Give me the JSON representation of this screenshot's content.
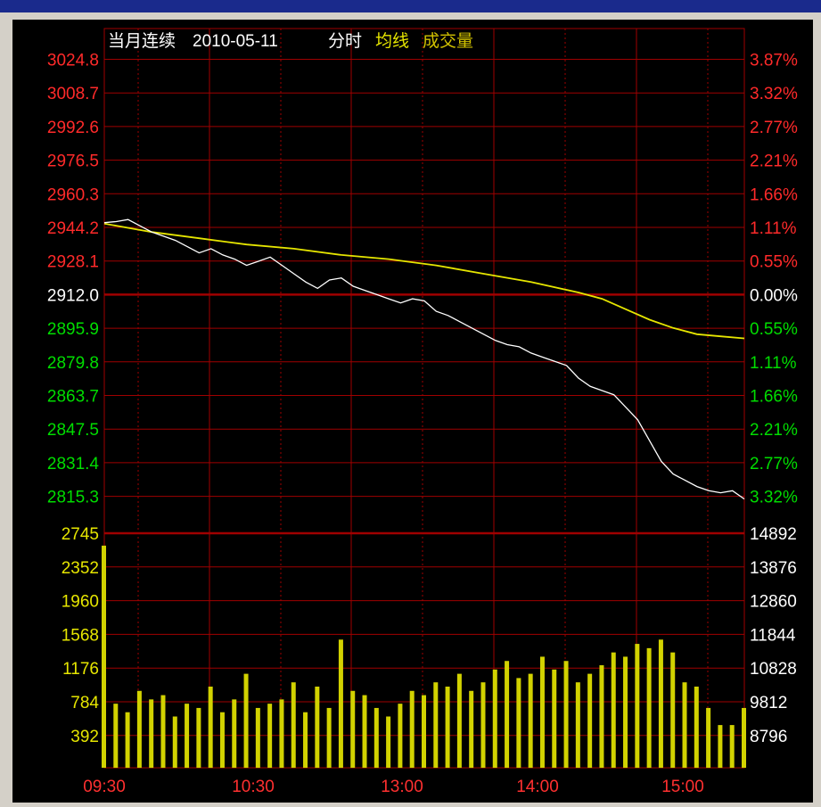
{
  "header": {
    "prefix": "当月连续",
    "date": "2010-05-11",
    "mode": "分时",
    "avg_label": "均线",
    "vol_label": "成交量"
  },
  "colors": {
    "background": "#000000",
    "grid": "#a00000",
    "price_line": "#ffffff",
    "avg_line": "#e6e600",
    "volume_bar": "#d2d200",
    "up_text": "#ff2a2a",
    "down_text": "#00dd00",
    "neutral_text": "#ffffff",
    "volume_text": "#e6e600",
    "time_text": "#ff3030"
  },
  "chart_data": {
    "type": "line",
    "title": "当月连续 2010-05-11 分时",
    "legend": [
      "均线",
      "成交量"
    ],
    "prev_close": 2912.0,
    "price_axis": {
      "ticks": [
        "3024.8",
        "3008.7",
        "2992.6",
        "2976.5",
        "2960.3",
        "2944.2",
        "2928.1",
        "2912.0",
        "2895.9",
        "2879.8",
        "2863.7",
        "2847.5",
        "2831.4",
        "2815.3"
      ],
      "pct_ticks": [
        "3.87%",
        "3.32%",
        "2.77%",
        "2.21%",
        "1.66%",
        "1.11%",
        "0.55%",
        "0.00%",
        "0.55%",
        "1.11%",
        "1.66%",
        "2.21%",
        "2.77%",
        "3.32%"
      ],
      "range": [
        2815.3,
        3024.8
      ]
    },
    "volume_axis": {
      "ticks": [
        "2745",
        "2352",
        "1960",
        "1568",
        "1176",
        "784",
        "392"
      ],
      "right_ticks": [
        "14892",
        "13876",
        "12860",
        "11844",
        "10828",
        "9812",
        "8796"
      ],
      "range": [
        0,
        2745
      ]
    },
    "time_labels": [
      "09:30",
      "10:30",
      "13:00",
      "14:00",
      "15:00"
    ],
    "price_line": {
      "name": "分时",
      "x": [
        0,
        5,
        10,
        15,
        20,
        25,
        30,
        35,
        40,
        45,
        50,
        55,
        60,
        65,
        70,
        75,
        80,
        85,
        90,
        95,
        100,
        105,
        110,
        115,
        120,
        125,
        130,
        135,
        140,
        145,
        150,
        155,
        160,
        165,
        170,
        175,
        180,
        185,
        190,
        195,
        200,
        205,
        210,
        215,
        220,
        225,
        230,
        235,
        240,
        245,
        250,
        255,
        260,
        265,
        270
      ],
      "values": [
        2946.5,
        2947,
        2948,
        2945,
        2942,
        2940,
        2938,
        2935,
        2932,
        2934,
        2931,
        2929,
        2926,
        2928,
        2930,
        2926,
        2922,
        2918,
        2915,
        2919,
        2920,
        2916,
        2914,
        2912,
        2910,
        2908,
        2910,
        2909,
        2904,
        2902,
        2899,
        2896,
        2893,
        2890,
        2888,
        2887,
        2884,
        2882,
        2880,
        2878,
        2872,
        2868,
        2866,
        2864,
        2858,
        2852,
        2842,
        2832,
        2826,
        2823,
        2820,
        2818,
        2817,
        2818,
        2814
      ],
      "ylim": [
        2815.3,
        3024.8
      ]
    },
    "avg_line": {
      "name": "均线",
      "x": [
        0,
        20,
        40,
        60,
        80,
        100,
        120,
        140,
        160,
        180,
        200,
        210,
        220,
        230,
        240,
        250,
        260,
        270
      ],
      "values": [
        2946,
        2942,
        2939,
        2936,
        2934,
        2931,
        2929,
        2926,
        2922,
        2918,
        2913,
        2910,
        2905,
        2900,
        2896,
        2893,
        2892,
        2891
      ],
      "ylim": [
        2815.3,
        3024.8
      ]
    },
    "volume": {
      "name": "成交量",
      "x": [
        0,
        5,
        10,
        15,
        20,
        25,
        30,
        35,
        40,
        45,
        50,
        55,
        60,
        65,
        70,
        75,
        80,
        85,
        90,
        95,
        100,
        105,
        110,
        115,
        120,
        125,
        130,
        135,
        140,
        145,
        150,
        155,
        160,
        165,
        170,
        175,
        180,
        185,
        190,
        195,
        200,
        205,
        210,
        215,
        220,
        225,
        230,
        235,
        240,
        245,
        250,
        255,
        260,
        265,
        270
      ],
      "values": [
        2600,
        750,
        650,
        900,
        800,
        850,
        600,
        750,
        700,
        950,
        650,
        800,
        1100,
        700,
        750,
        800,
        1000,
        650,
        950,
        700,
        1500,
        900,
        850,
        700,
        600,
        750,
        900,
        850,
        1000,
        950,
        1100,
        900,
        1000,
        1150,
        1250,
        1050,
        1100,
        1300,
        1150,
        1250,
        1000,
        1100,
        1200,
        1350,
        1300,
        1450,
        1400,
        1500,
        1350,
        1000,
        950,
        700,
        500,
        500,
        700
      ],
      "ylim": [
        0,
        2745
      ]
    },
    "ylabel": "",
    "xlabel": "",
    "grid": true
  }
}
